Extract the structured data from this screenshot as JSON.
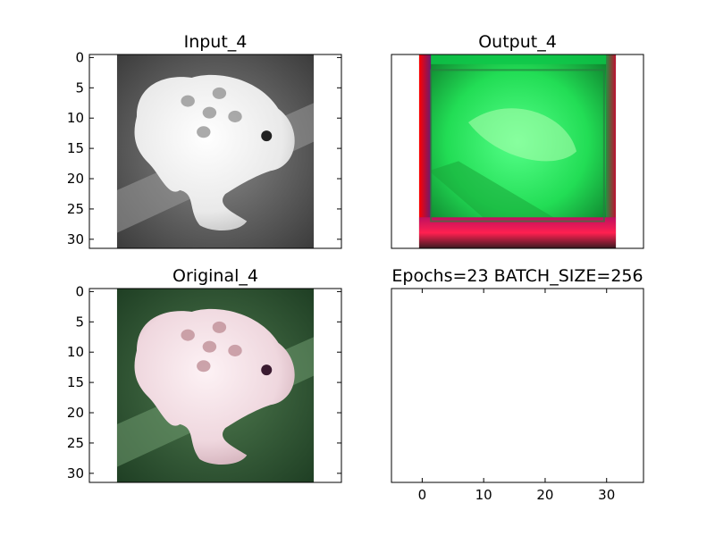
{
  "chart_data": [
    {
      "type": "image",
      "title": "Input_4",
      "colormap": "grayscale",
      "image_size": [
        32,
        32
      ],
      "xlim": [
        -5,
        36
      ],
      "ylim": [
        31.5,
        -0.5
      ],
      "xticks": [],
      "yticks": [
        0,
        5,
        10,
        15,
        20,
        25,
        30
      ]
    },
    {
      "type": "image",
      "title": "Output_4",
      "colormap": "rgb",
      "image_size": [
        32,
        32
      ],
      "xlim": [
        -5,
        36
      ],
      "ylim": [
        31.5,
        -0.5
      ],
      "xticks": [],
      "yticks": []
    },
    {
      "type": "image",
      "title": "Original_4",
      "colormap": "rgb",
      "image_size": [
        32,
        32
      ],
      "xlim": [
        -5,
        36
      ],
      "ylim": [
        31.5,
        -0.5
      ],
      "xticks": [],
      "yticks": [
        0,
        5,
        10,
        15,
        20,
        25,
        30
      ]
    },
    {
      "type": "image",
      "title": "Epochs=23 BATCH_SIZE=256",
      "colormap": "none",
      "image_size": [
        0,
        0
      ],
      "xlim": [
        -5,
        36
      ],
      "ylim": [
        31.5,
        -0.5
      ],
      "xticks": [
        0,
        10,
        20,
        30
      ],
      "yticks": []
    }
  ]
}
